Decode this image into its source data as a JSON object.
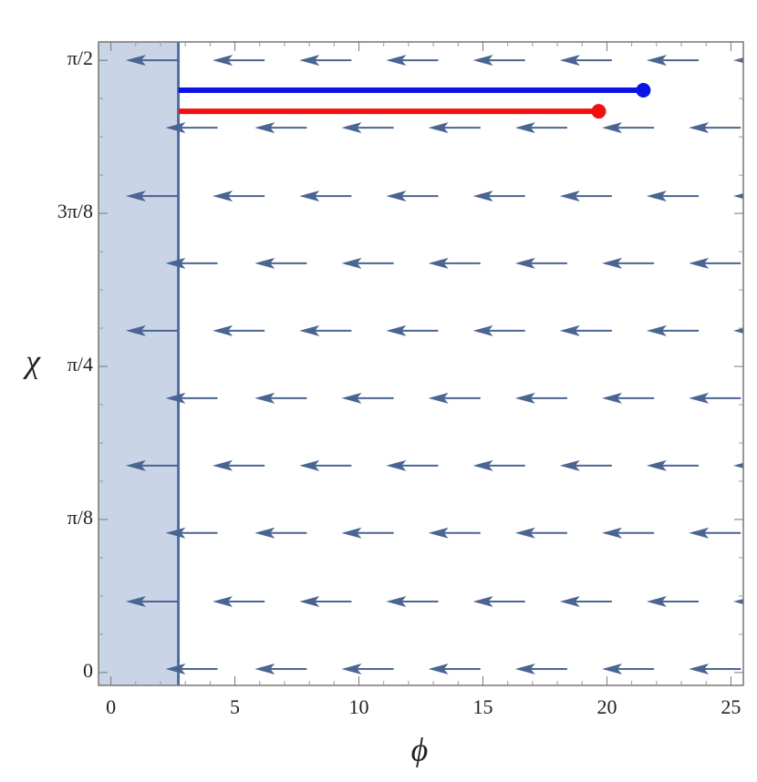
{
  "chart_data": {
    "type": "vector-field",
    "x_label": "ϕ",
    "y_label": "χ",
    "xlim": [
      -0.5,
      25.5
    ],
    "ylim": [
      -0.033,
      1.618
    ],
    "xticks": [
      0,
      5,
      10,
      15,
      20,
      25
    ],
    "yticks": [
      0,
      {
        "value": 0.3927,
        "label": "π/8"
      },
      {
        "value": 0.7854,
        "label": "π/4"
      },
      {
        "value": 1.1781,
        "label": "3π/8"
      },
      {
        "value": 1.5708,
        "label": "π/2"
      }
    ],
    "shaded_region": {
      "xmax": 2.72,
      "color": "#c9d5e7",
      "edge_color": "#4f6fa3"
    },
    "arrows": {
      "color": "#4a6591",
      "dx": -2.1,
      "rows": [
        {
          "y": 1.571,
          "x": [
            0.6,
            4.1,
            7.6,
            11.1,
            14.6,
            18.1,
            21.6,
            25.1
          ]
        },
        {
          "y": 1.398,
          "x": [
            2.2,
            5.8,
            9.3,
            12.8,
            16.3,
            19.8,
            23.3
          ]
        },
        {
          "y": 1.2225,
          "x": [
            0.6,
            4.1,
            7.6,
            11.1,
            14.6,
            18.1,
            21.6,
            25.1
          ]
        },
        {
          "y": 1.05,
          "x": [
            2.2,
            5.8,
            9.3,
            12.8,
            16.3,
            19.8,
            23.3
          ]
        },
        {
          "y": 0.877,
          "x": [
            0.6,
            4.1,
            7.6,
            11.1,
            14.6,
            18.1,
            21.6,
            25.1
          ]
        },
        {
          "y": 0.704,
          "x": [
            2.2,
            5.8,
            9.3,
            12.8,
            16.3,
            19.8,
            23.3
          ]
        },
        {
          "y": 0.531,
          "x": [
            0.6,
            4.1,
            7.6,
            11.1,
            14.6,
            18.1,
            21.6,
            25.1
          ]
        },
        {
          "y": 0.358,
          "x": [
            2.2,
            5.8,
            9.3,
            12.8,
            16.3,
            19.8,
            23.3
          ]
        },
        {
          "y": 0.182,
          "x": [
            0.6,
            4.1,
            7.6,
            11.1,
            14.6,
            18.1,
            21.6,
            25.1
          ]
        },
        {
          "y": 0.009,
          "x": [
            2.2,
            5.8,
            9.3,
            12.8,
            16.3,
            19.8,
            23.3
          ]
        }
      ]
    },
    "series": [
      {
        "color": "#0a14e6",
        "x": [
          2.72,
          21.47
        ],
        "values": [
          1.494,
          1.494
        ]
      },
      {
        "color": "#f01010",
        "x": [
          2.72,
          19.67
        ],
        "values": [
          1.44,
          1.44
        ]
      }
    ]
  }
}
